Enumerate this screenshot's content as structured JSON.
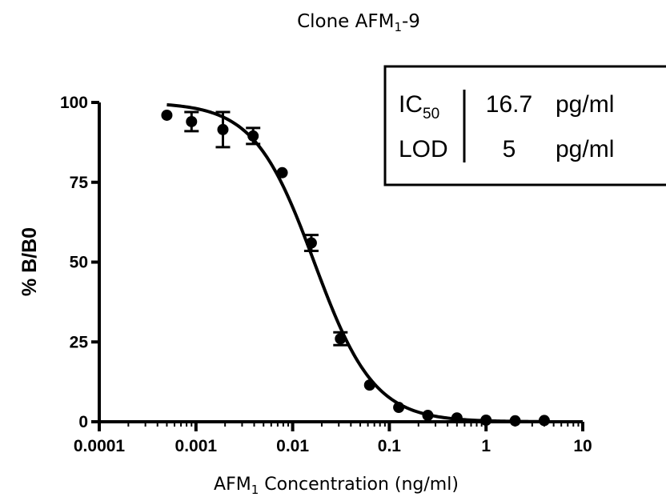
{
  "chart_data": {
    "type": "scatter",
    "title": "Clone AFM",
    "title_sub": "1",
    "title_suffix": "-9",
    "xlabel": "AFM",
    "xlabel_sub": "1",
    "xlabel_suffix": " Concentration (ng/ml)",
    "ylabel": "% B/B0",
    "x_scale": "log",
    "xlim": [
      0.0001,
      10
    ],
    "ylim": [
      0,
      100
    ],
    "x_ticks": [
      "0.0001",
      "0.001",
      "0.01",
      "0.1",
      "1",
      "10"
    ],
    "y_ticks": [
      "0",
      "25",
      "50",
      "75",
      "100"
    ],
    "grid": false,
    "series": [
      {
        "x": [
          0.0005,
          0.0009,
          0.0019,
          0.0039,
          0.0078,
          0.0156,
          0.0312,
          0.0625,
          0.125,
          0.25,
          0.5,
          1,
          2,
          4
        ],
        "y": [
          96,
          94,
          91.5,
          89.5,
          78,
          56,
          26,
          11.5,
          4.5,
          2,
          1.2,
          0.5,
          0.3,
          0.4
        ],
        "err": [
          0,
          3,
          5.5,
          2.5,
          0,
          2.5,
          2,
          0,
          0,
          0,
          0,
          0,
          0,
          0
        ]
      }
    ],
    "fit": {
      "type": "4PL",
      "top": 100,
      "bottom": 0,
      "ic50": 0.0167,
      "hill": 1.4
    },
    "annotation": {
      "rows": [
        {
          "label": "IC",
          "label_sub": "50",
          "value": "16.7",
          "unit": "pg/ml"
        },
        {
          "label": "LOD",
          "label_sub": "",
          "value": "5",
          "unit": "pg/ml"
        }
      ]
    }
  }
}
